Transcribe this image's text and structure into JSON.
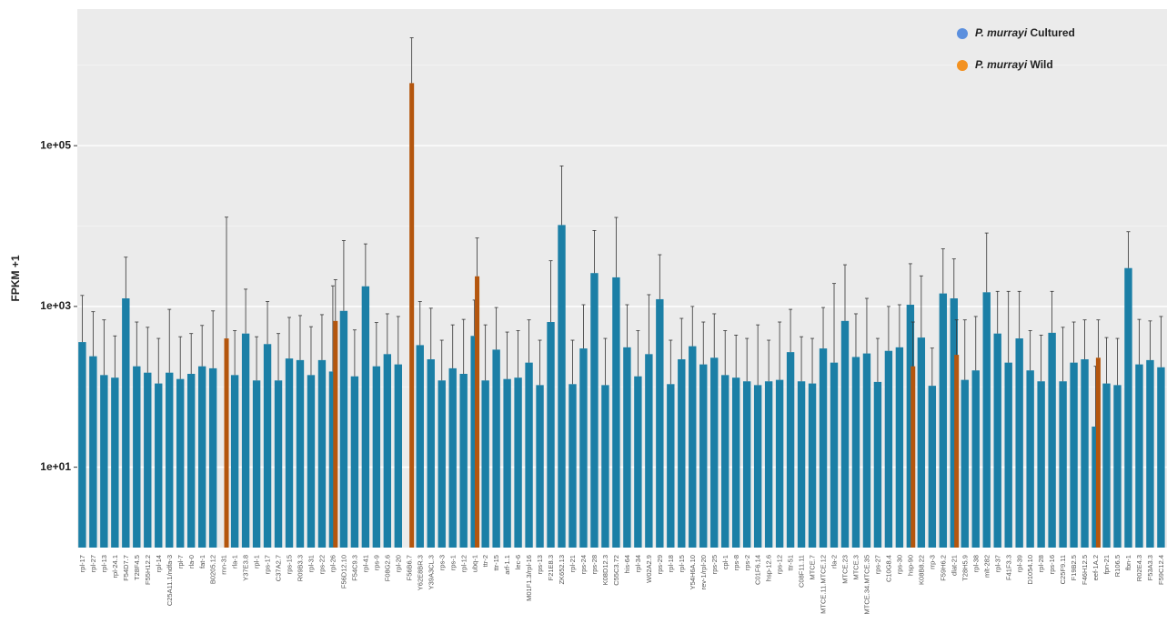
{
  "chart_data": {
    "type": "bar",
    "y_label": "FPKM +1",
    "log_scale": true,
    "grid": true,
    "legend_position": "top-right",
    "ylim": [
      1,
      5000000
    ],
    "yticks": [
      {
        "value": 10,
        "label": "1e+01"
      },
      {
        "value": 1000,
        "label": "1e+03"
      },
      {
        "value": 100000,
        "label": "1e+05"
      }
    ],
    "minor_yticks": [
      100,
      10000,
      1000000
    ],
    "categories": [
      "rpl-17",
      "rpl-27",
      "rpl-13",
      "rpl-24.1",
      "F54D7.7",
      "T28F4.5",
      "F55H12.2",
      "rpl-14",
      "C25A11.1/ndfa-3",
      "rpl-7",
      "rla-0",
      "fat-1",
      "B0205.12",
      "rnn-31",
      "rla-1",
      "Y37E3.8",
      "rpl-1",
      "rps-17",
      "C37A2.7",
      "rps-15",
      "R09B3.3",
      "rpl-31",
      "rps-22",
      "rpl-26",
      "F56D12.10",
      "F54C9.3",
      "rpl-41",
      "rps-9",
      "F08G2.6",
      "rpl-20",
      "F56B6.7",
      "Y62E8BR.3",
      "Y39A3CL.3",
      "rps-3",
      "rps-1",
      "rpl-12",
      "ubq-1",
      "ttr-2",
      "ttr-15",
      "arf-1.1",
      "lec-6",
      "M01F1.3/rpl-16",
      "rps-13",
      "F21E8.3",
      "ZK652.13",
      "rpl-21",
      "rps-24",
      "rps-28",
      "K08D12.3",
      "C55C3.72",
      "his-64",
      "rpl-34",
      "W02A2.9",
      "rps-29",
      "rpl-18",
      "rpl-15",
      "Y54H6A.10",
      "rev-1/rpl-20",
      "rps-25",
      "cpl-1",
      "rps-8",
      "rps-2",
      "C01F6.14",
      "hsp-12.6",
      "rps-12",
      "ttr-51",
      "C08F11.11",
      "MTCE.7",
      "MTCE.11.MTCE.12",
      "rla-2",
      "MTCE.23",
      "MTCE.3",
      "MTCE.34.MTCE.35",
      "rps-27",
      "C10G8.4",
      "rps-30",
      "hsp-90",
      "K08B8.22",
      "rrp-3",
      "F59H6.2",
      "dlat-21",
      "T28H5.9",
      "rpl-38",
      "mlt-282",
      "rpl-37",
      "F41F3.3",
      "rpl-39",
      "D1054.10",
      "rpl-28",
      "rps-16",
      "C25F9.11",
      "F19B2.5",
      "F46H12.5",
      "eef-1A.2",
      "fpn-21",
      "R106.5",
      "fbn-1",
      "R02E4.3",
      "F53A3.3",
      "F59C12.4"
    ],
    "series": [
      {
        "name": "P. murrayi Cultured",
        "color": "#1b7fa6",
        "legend_color": "#5b8fde",
        "values": [
          360,
          240,
          140,
          130,
          1260,
          180,
          150,
          110,
          150,
          125,
          145,
          180,
          170,
          null,
          140,
          460,
          120,
          340,
          120,
          225,
          215,
          140,
          215,
          155,
          880,
          135,
          1780,
          180,
          255,
          190,
          null,
          330,
          220,
          120,
          170,
          145,
          430,
          120,
          290,
          125,
          130,
          200,
          105,
          640,
          10300,
          108,
          300,
          2600,
          105,
          2300,
          310,
          135,
          255,
          1230,
          108,
          220,
          320,
          190,
          230,
          140,
          130,
          117,
          105,
          117,
          122,
          270,
          117,
          110,
          300,
          200,
          660,
          235,
          260,
          115,
          280,
          310,
          1050,
          410,
          103,
          1450,
          1260,
          122,
          160,
          1500,
          460,
          200,
          400,
          160,
          117,
          470,
          117,
          200,
          220,
          32,
          110,
          105,
          3000,
          190,
          215,
          175
        ],
        "errors": [
          1010,
          620,
          540,
          300,
          2840,
          460,
          400,
          290,
          770,
          295,
          315,
          400,
          710,
          null,
          360,
          1180,
          300,
          810,
          340,
          505,
          555,
          420,
          575,
          1650,
          5720,
          375,
          4220,
          450,
          555,
          560,
          null,
          820,
          730,
          260,
          420,
          545,
          770,
          470,
          680,
          355,
          370,
          480,
          275,
          3060,
          45700,
          272,
          750,
          6200,
          295,
          10500,
          740,
          365,
          1145,
          3170,
          272,
          490,
          680,
          450,
          580,
          360,
          310,
          283,
          485,
          263,
          518,
          650,
          303,
          290,
          670,
          1730,
          2640,
          575,
          1000,
          285,
          720,
          740,
          2350,
          1990,
          200,
          3750,
          2640,
          558,
          590,
          6700,
          1080,
          1340,
          1140,
          340,
          323,
          1070,
          433,
          440,
          460,
          148,
          300,
          295,
          5500,
          500,
          445,
          575
        ]
      },
      {
        "name": "P. murrayi Wild",
        "color": "#b4560e",
        "legend_color": "#f39120",
        "values": [
          null,
          null,
          null,
          null,
          null,
          null,
          null,
          null,
          null,
          null,
          null,
          null,
          null,
          400,
          null,
          null,
          null,
          null,
          null,
          null,
          null,
          null,
          null,
          660,
          null,
          null,
          null,
          null,
          null,
          null,
          600000,
          null,
          null,
          null,
          null,
          null,
          2370,
          null,
          null,
          null,
          null,
          null,
          null,
          null,
          null,
          null,
          null,
          null,
          null,
          null,
          null,
          null,
          null,
          null,
          null,
          null,
          null,
          null,
          null,
          null,
          null,
          null,
          null,
          null,
          null,
          null,
          null,
          null,
          null,
          null,
          null,
          null,
          null,
          null,
          null,
          null,
          180,
          null,
          null,
          null,
          250,
          null,
          null,
          null,
          null,
          null,
          null,
          null,
          null,
          null,
          null,
          null,
          null,
          230,
          null,
          null,
          null,
          null,
          null,
          null
        ],
        "errors": [
          null,
          null,
          null,
          null,
          null,
          null,
          null,
          null,
          null,
          null,
          null,
          null,
          null,
          12500,
          null,
          null,
          null,
          null,
          null,
          null,
          null,
          null,
          null,
          1490,
          null,
          null,
          null,
          null,
          null,
          null,
          1600000,
          null,
          null,
          null,
          null,
          null,
          4730,
          null,
          null,
          null,
          null,
          null,
          null,
          null,
          null,
          null,
          null,
          null,
          null,
          null,
          null,
          null,
          null,
          null,
          null,
          null,
          null,
          null,
          null,
          null,
          null,
          null,
          null,
          null,
          null,
          null,
          null,
          null,
          null,
          null,
          null,
          null,
          null,
          null,
          null,
          null,
          460,
          null,
          null,
          null,
          430,
          null,
          null,
          null,
          null,
          null,
          null,
          null,
          null,
          null,
          null,
          null,
          null,
          450,
          null,
          null,
          null,
          null,
          null,
          null
        ]
      }
    ]
  }
}
